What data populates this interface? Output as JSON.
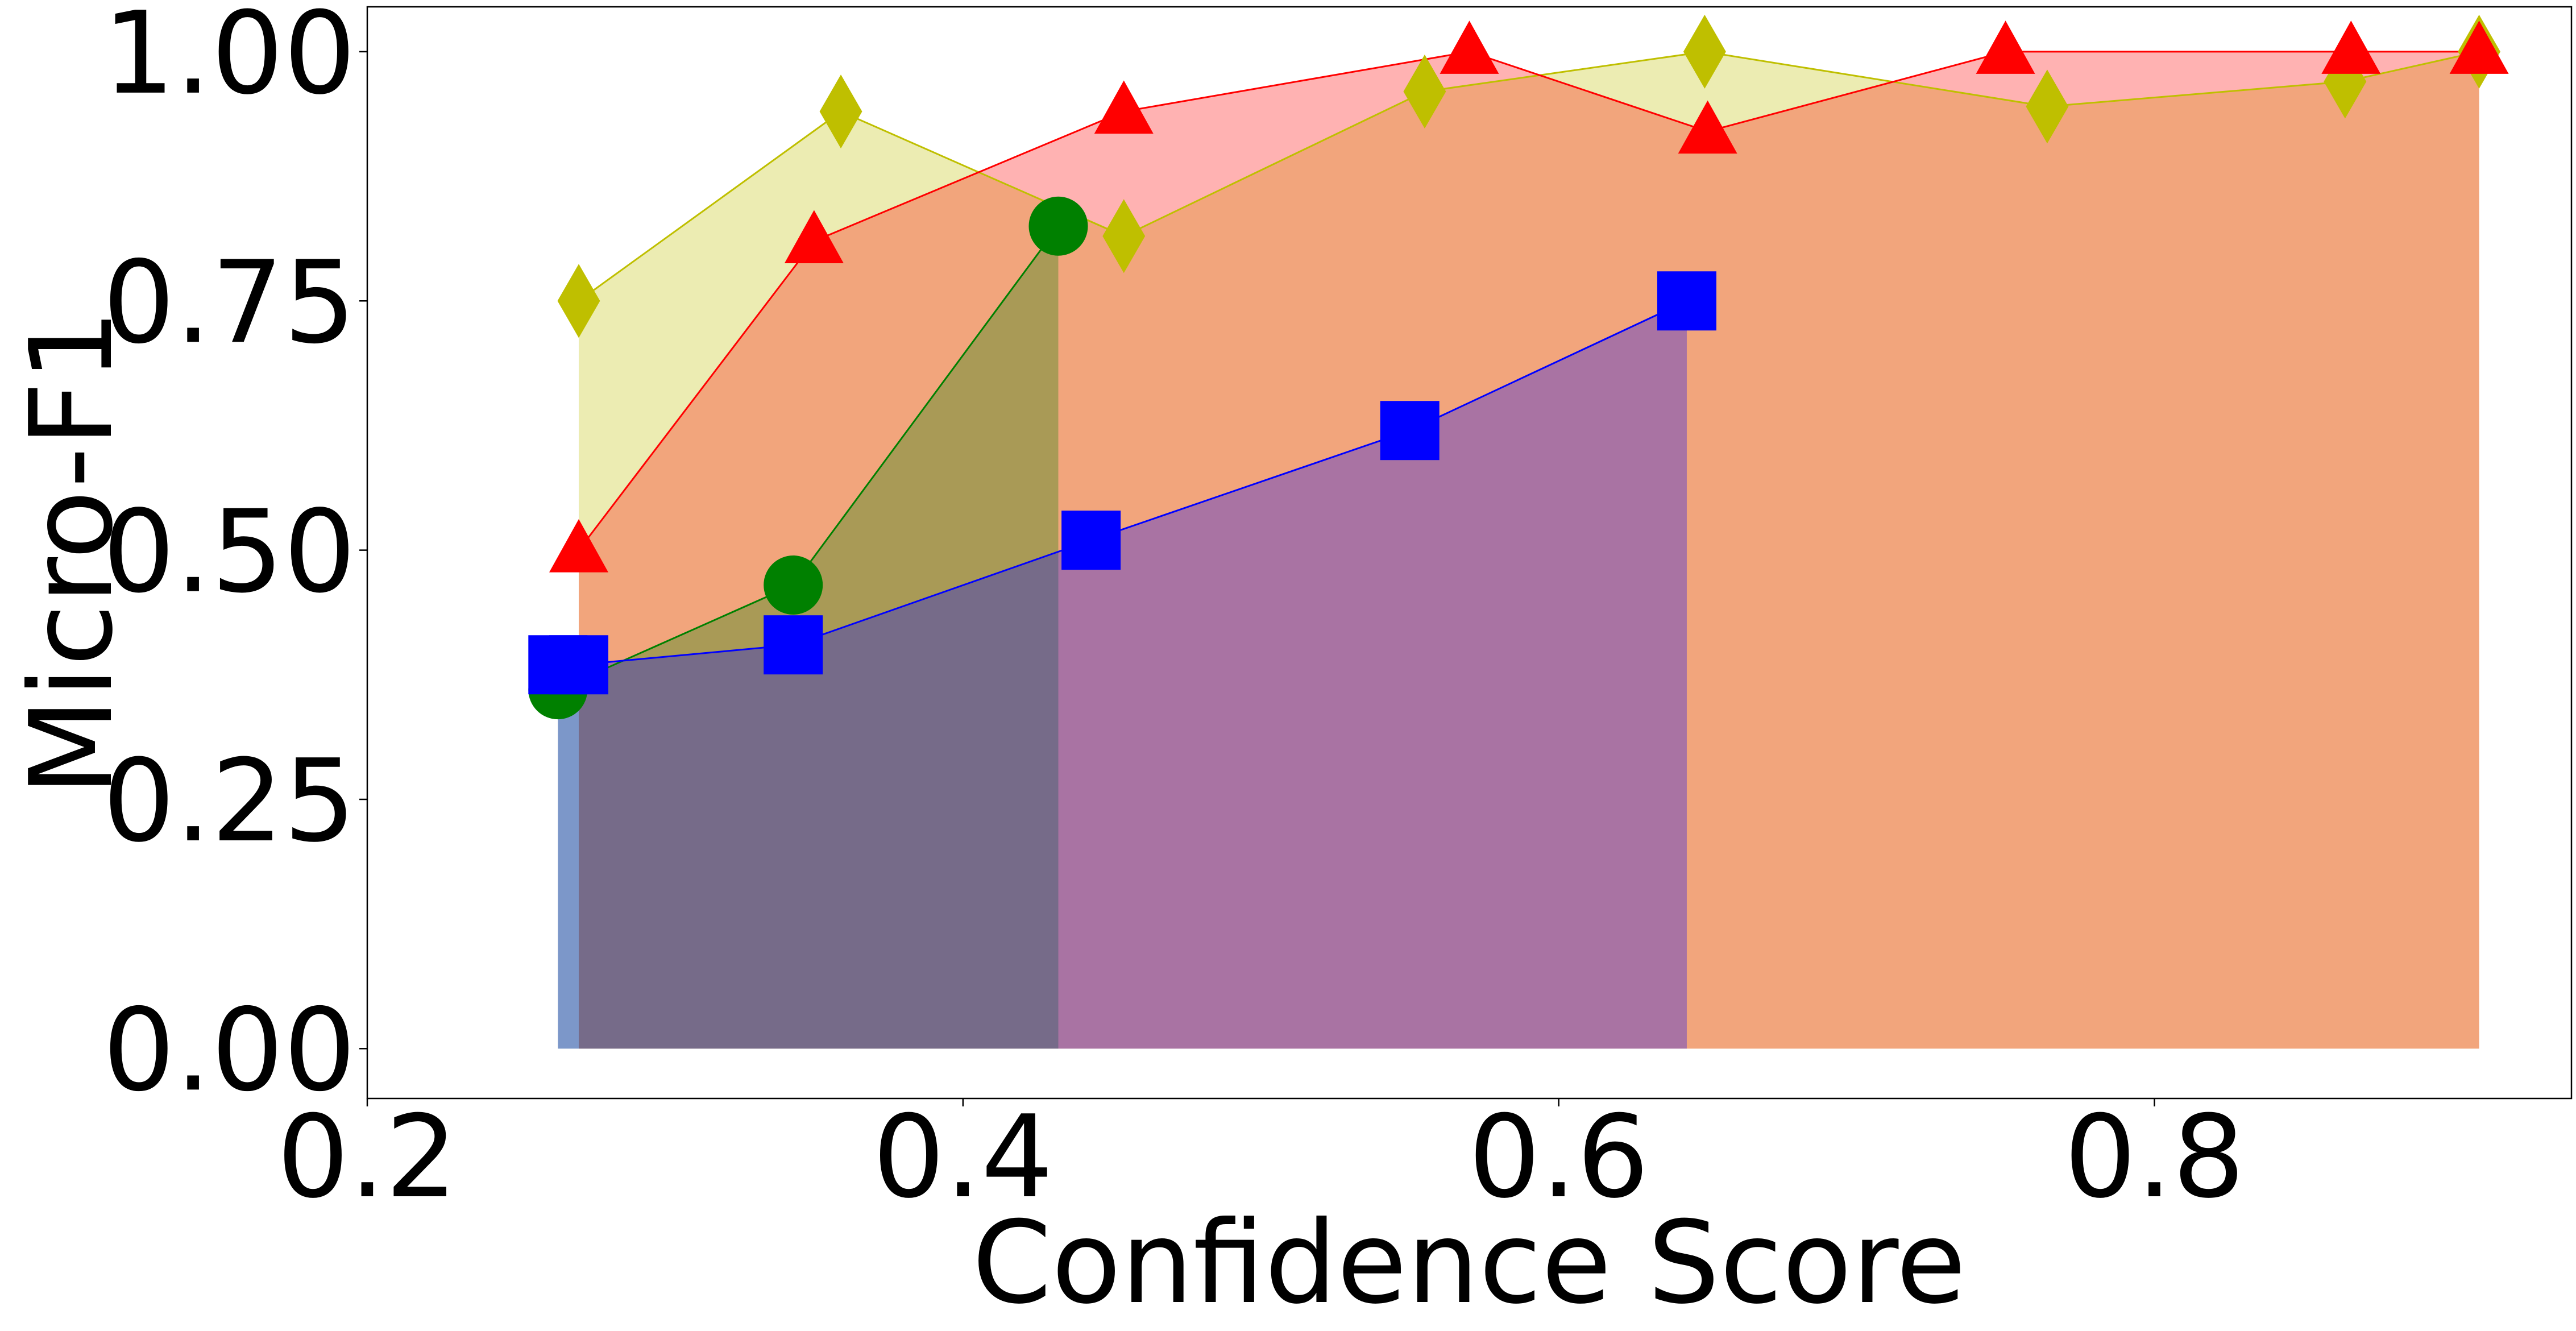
{
  "chart_data": {
    "type": "area",
    "xlabel": "Confidence Score",
    "ylabel": "Micro-F1",
    "xlim": [
      0.2,
      0.94
    ],
    "ylim": [
      -0.05,
      1.045
    ],
    "x_ticks": [
      "0.2",
      "0.4",
      "0.6",
      "0.8"
    ],
    "x_tick_values": [
      0.2,
      0.4,
      0.6,
      0.8
    ],
    "y_ticks": [
      "0.00",
      "0.25",
      "0.50",
      "0.75",
      "1.00"
    ],
    "y_tick_values": [
      0,
      0.25,
      0.5,
      0.75,
      1.0
    ],
    "grid": false,
    "legend": "none",
    "series": [
      {
        "marker": "diamond",
        "color": "#bfbf00",
        "x": [
          0.271,
          0.359,
          0.454,
          0.555,
          0.649,
          0.764,
          0.864,
          0.909
        ],
        "y": [
          0.75,
          0.94,
          0.815,
          0.96,
          1.0,
          0.945,
          0.97,
          1.0
        ]
      },
      {
        "marker": "triangle",
        "color": "#ff0000",
        "x": [
          0.271,
          0.35,
          0.454,
          0.57,
          0.65,
          0.75,
          0.866,
          0.909
        ],
        "y": [
          0.5,
          0.81,
          0.94,
          1.0,
          0.92,
          1.0,
          1.0,
          1.0
        ]
      },
      {
        "marker": "circle",
        "color": "#008000",
        "x": [
          0.264,
          0.343,
          0.432
        ],
        "y": [
          0.36,
          0.465,
          0.825
        ]
      },
      {
        "marker": "square",
        "color": "#0000ff",
        "x": [
          0.264,
          0.271,
          0.343,
          0.443,
          0.55,
          0.643
        ],
        "y": [
          0.385,
          0.385,
          0.405,
          0.51,
          0.62,
          0.75
        ]
      }
    ]
  }
}
